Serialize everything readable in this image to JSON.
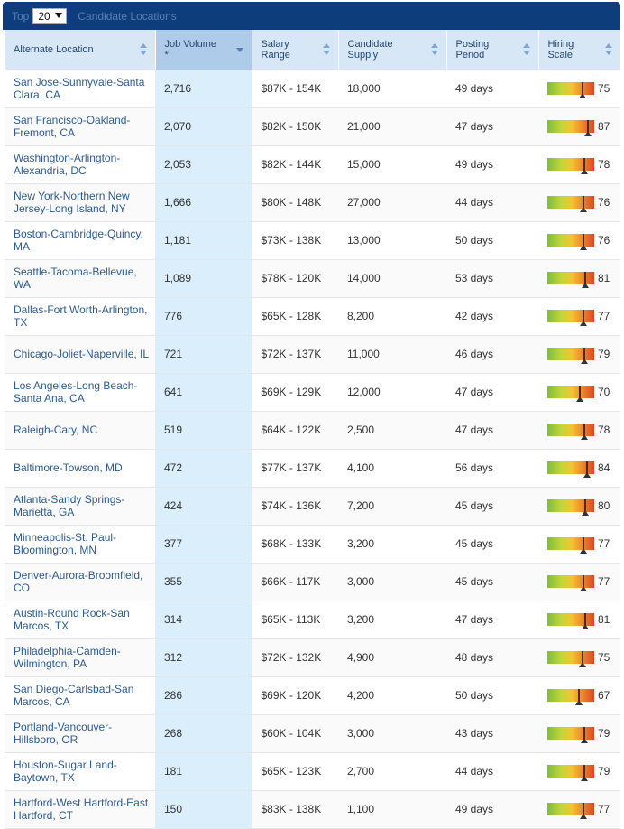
{
  "topbar": {
    "prefix": "Top",
    "selected_count": "20",
    "title": "Candidate Locations"
  },
  "columns": [
    {
      "label": "Alternate Location"
    },
    {
      "label": "Job Volume *"
    },
    {
      "label": "Salary Range"
    },
    {
      "label": "Candidate Supply"
    },
    {
      "label": "Posting Period"
    },
    {
      "label": "Hiring Scale"
    }
  ],
  "rows": [
    {
      "location": "San Jose-Sunnyvale-Santa Clara, CA",
      "volume": "2,716",
      "salary": "$87K - 154K",
      "supply": "18,000",
      "period": "49 days",
      "scale": 75
    },
    {
      "location": "San Francisco-Oakland-Fremont, CA",
      "volume": "2,070",
      "salary": "$82K - 150K",
      "supply": "21,000",
      "period": "47 days",
      "scale": 87
    },
    {
      "location": "Washington-Arlington-Alexandria, DC",
      "volume": "2,053",
      "salary": "$82K - 144K",
      "supply": "15,000",
      "period": "49 days",
      "scale": 78
    },
    {
      "location": "New York-Northern New Jersey-Long Island, NY",
      "volume": "1,666",
      "salary": "$80K - 148K",
      "supply": "27,000",
      "period": "44 days",
      "scale": 76
    },
    {
      "location": "Boston-Cambridge-Quincy, MA",
      "volume": "1,181",
      "salary": "$73K - 138K",
      "supply": "13,000",
      "period": "50 days",
      "scale": 76
    },
    {
      "location": "Seattle-Tacoma-Bellevue, WA",
      "volume": "1,089",
      "salary": "$78K - 120K",
      "supply": "14,000",
      "period": "53 days",
      "scale": 81
    },
    {
      "location": "Dallas-Fort Worth-Arlington, TX",
      "volume": "776",
      "salary": "$65K - 128K",
      "supply": "8,200",
      "period": "42 days",
      "scale": 77
    },
    {
      "location": "Chicago-Joliet-Naperville, IL",
      "volume": "721",
      "salary": "$72K - 137K",
      "supply": "11,000",
      "period": "46 days",
      "scale": 79
    },
    {
      "location": "Los Angeles-Long Beach-Santa Ana, CA",
      "volume": "641",
      "salary": "$69K - 129K",
      "supply": "12,000",
      "period": "47 days",
      "scale": 70
    },
    {
      "location": "Raleigh-Cary, NC",
      "volume": "519",
      "salary": "$64K - 122K",
      "supply": "2,500",
      "period": "47 days",
      "scale": 78
    },
    {
      "location": "Baltimore-Towson, MD",
      "volume": "472",
      "salary": "$77K - 137K",
      "supply": "4,100",
      "period": "56 days",
      "scale": 84
    },
    {
      "location": "Atlanta-Sandy Springs-Marietta, GA",
      "volume": "424",
      "salary": "$74K - 136K",
      "supply": "7,200",
      "period": "45 days",
      "scale": 80
    },
    {
      "location": "Minneapolis-St. Paul-Bloomington, MN",
      "volume": "377",
      "salary": "$68K - 133K",
      "supply": "3,200",
      "period": "45 days",
      "scale": 77
    },
    {
      "location": "Denver-Aurora-Broomfield, CO",
      "volume": "355",
      "salary": "$66K - 117K",
      "supply": "3,000",
      "period": "45 days",
      "scale": 77
    },
    {
      "location": "Austin-Round Rock-San Marcos, TX",
      "volume": "314",
      "salary": "$65K - 113K",
      "supply": "3,200",
      "period": "47 days",
      "scale": 81
    },
    {
      "location": "Philadelphia-Camden-Wilmington, PA",
      "volume": "312",
      "salary": "$72K - 132K",
      "supply": "4,900",
      "period": "48 days",
      "scale": 75
    },
    {
      "location": "San Diego-Carlsbad-San Marcos, CA",
      "volume": "286",
      "salary": "$69K - 120K",
      "supply": "4,200",
      "period": "50 days",
      "scale": 67
    },
    {
      "location": "Portland-Vancouver-Hillsboro, OR",
      "volume": "268",
      "salary": "$60K - 104K",
      "supply": "3,000",
      "period": "43 days",
      "scale": 79
    },
    {
      "location": "Houston-Sugar Land-Baytown, TX",
      "volume": "181",
      "salary": "$65K - 123K",
      "supply": "2,700",
      "period": "44 days",
      "scale": 79
    },
    {
      "location": "Hartford-West Hartford-East Hartford, CT",
      "volume": "150",
      "salary": "$83K - 138K",
      "supply": "1,100",
      "period": "49 days",
      "scale": 77
    }
  ]
}
